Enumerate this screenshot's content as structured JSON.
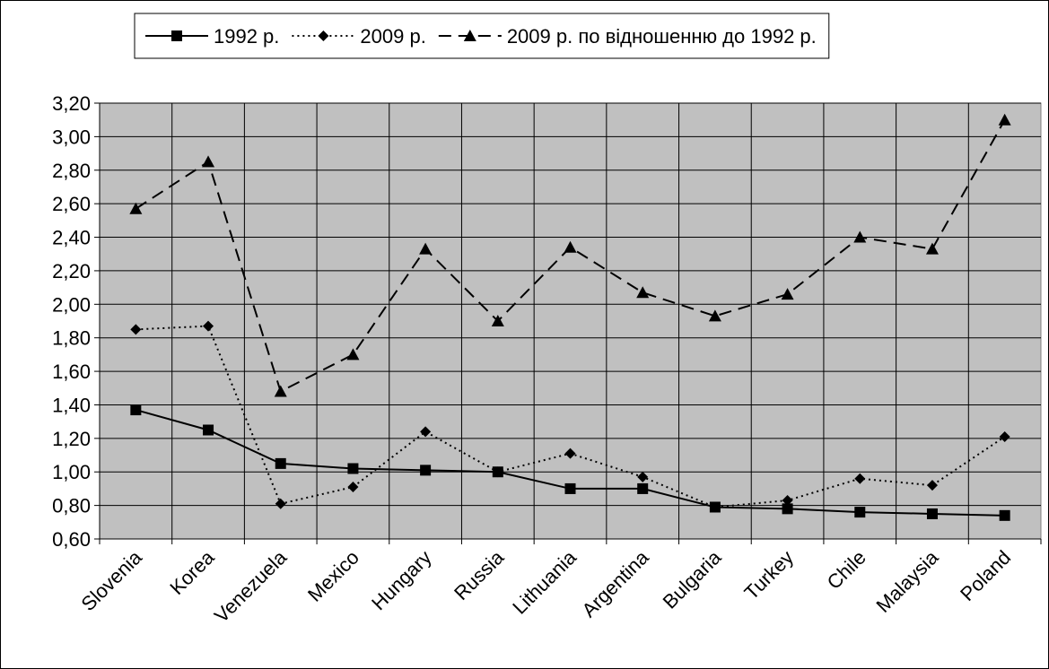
{
  "chart_data": {
    "type": "line",
    "categories": [
      "Slovenia",
      "Korea",
      "Venezuela",
      "Mexico",
      "Hungary",
      "Russia",
      "Lithuania",
      "Argentina",
      "Bulgaria",
      "Turkey",
      "Chile",
      "Malaysia",
      "Poland"
    ],
    "series": [
      {
        "name": "1992 р.",
        "color": "#000000",
        "dash": "solid",
        "marker": "square",
        "values": [
          1.37,
          1.25,
          1.05,
          1.02,
          1.01,
          1.0,
          0.9,
          0.9,
          0.79,
          0.78,
          0.76,
          0.75,
          0.74
        ]
      },
      {
        "name": "2009 р.",
        "color": "#000000",
        "dash": "dotted",
        "marker": "diamond",
        "values": [
          1.85,
          1.87,
          0.81,
          0.91,
          1.24,
          1.0,
          1.11,
          0.97,
          0.79,
          0.83,
          0.96,
          0.92,
          1.21
        ]
      },
      {
        "name": "2009 р. по відношенню до 1992 р.",
        "color": "#000000",
        "dash": "dashed",
        "marker": "triangle",
        "values": [
          2.57,
          2.85,
          1.48,
          1.7,
          2.33,
          1.9,
          2.34,
          2.07,
          1.93,
          2.06,
          2.4,
          2.33,
          3.1
        ]
      }
    ],
    "ylim": [
      0.6,
      3.2
    ],
    "yticks": [
      {
        "value": 0.6,
        "label": "0,60"
      },
      {
        "value": 0.8,
        "label": "0,80"
      },
      {
        "value": 1.0,
        "label": "1,00"
      },
      {
        "value": 1.2,
        "label": "1,20"
      },
      {
        "value": 1.4,
        "label": "1,40"
      },
      {
        "value": 1.6,
        "label": "1,60"
      },
      {
        "value": 1.8,
        "label": "1,80"
      },
      {
        "value": 2.0,
        "label": "2,00"
      },
      {
        "value": 2.2,
        "label": "2,20"
      },
      {
        "value": 2.4,
        "label": "2,40"
      },
      {
        "value": 2.6,
        "label": "2,60"
      },
      {
        "value": 2.8,
        "label": "2,80"
      },
      {
        "value": 3.0,
        "label": "3,00"
      },
      {
        "value": 3.2,
        "label": "3,20"
      }
    ],
    "grid": true,
    "legend": "top"
  }
}
